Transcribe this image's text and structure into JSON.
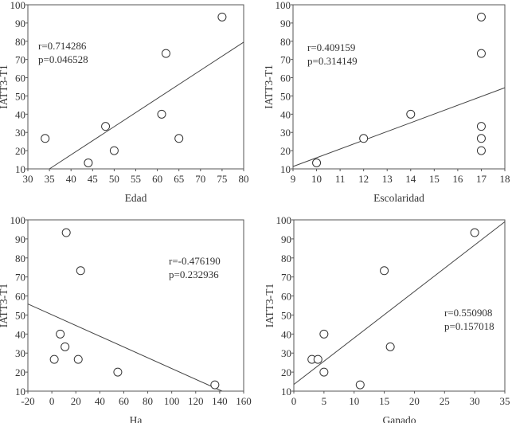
{
  "chart_data": [
    {
      "type": "scatter",
      "xlabel": "Edad",
      "ylabel": "IATT3-T1",
      "xlim": [
        30,
        80
      ],
      "ylim": [
        10,
        100
      ],
      "xticks": [
        30,
        35,
        40,
        45,
        50,
        55,
        60,
        65,
        70,
        75,
        80
      ],
      "yticks": [
        10,
        20,
        30,
        40,
        50,
        60,
        70,
        80,
        90,
        100
      ],
      "points": [
        [
          34,
          26.7
        ],
        [
          44,
          13.3
        ],
        [
          48,
          33.3
        ],
        [
          50,
          20
        ],
        [
          61,
          40
        ],
        [
          62,
          73.3
        ],
        [
          65,
          26.7
        ],
        [
          75,
          93.3
        ]
      ],
      "fit_line": [
        [
          35,
          10
        ],
        [
          80,
          79.5
        ]
      ],
      "annotation": [
        "r=0.714286",
        "p=0.046528"
      ],
      "annotation_placement": "top-left"
    },
    {
      "type": "scatter",
      "xlabel": "Escolaridad",
      "ylabel": "IATT3-T1",
      "xlim": [
        9,
        18
      ],
      "ylim": [
        10,
        100
      ],
      "xticks": [
        9,
        10,
        11,
        12,
        13,
        14,
        15,
        16,
        17,
        18
      ],
      "yticks": [
        10,
        20,
        30,
        40,
        50,
        60,
        70,
        80,
        90,
        100
      ],
      "points": [
        [
          10,
          13.3
        ],
        [
          12,
          26.7
        ],
        [
          14,
          40
        ],
        [
          17,
          93.3
        ],
        [
          17,
          73.3
        ],
        [
          17,
          33.3
        ],
        [
          17,
          26.7
        ],
        [
          17,
          20
        ]
      ],
      "fit_line": [
        [
          9,
          11.3
        ],
        [
          18,
          54.5
        ]
      ],
      "annotation": [
        "r=0.409159",
        "p=0.314149"
      ],
      "annotation_placement": "top-left"
    },
    {
      "type": "scatter",
      "xlabel": "Ha",
      "ylabel": "IATT3-T1",
      "xlim": [
        -20,
        160
      ],
      "ylim": [
        10,
        100
      ],
      "xticks": [
        -20,
        0,
        20,
        40,
        60,
        80,
        100,
        120,
        140,
        160
      ],
      "yticks": [
        10,
        20,
        30,
        40,
        50,
        60,
        70,
        80,
        90,
        100
      ],
      "points": [
        [
          2,
          26.7
        ],
        [
          7,
          40
        ],
        [
          11,
          33.3
        ],
        [
          12,
          93.3
        ],
        [
          22,
          26.7
        ],
        [
          24,
          73.3
        ],
        [
          55,
          20
        ],
        [
          136,
          13.3
        ]
      ],
      "fit_line": [
        [
          -20,
          55.8
        ],
        [
          142,
          10
        ]
      ],
      "annotation": [
        "r=-0.476190",
        "p=0.232936"
      ],
      "annotation_placement": "top-right"
    },
    {
      "type": "scatter",
      "xlabel": "Ganado",
      "ylabel": "IATT3-T1",
      "xlim": [
        0,
        35
      ],
      "ylim": [
        10,
        100
      ],
      "xticks": [
        0,
        5,
        10,
        15,
        20,
        25,
        30,
        35
      ],
      "yticks": [
        10,
        20,
        30,
        40,
        50,
        60,
        70,
        80,
        90,
        100
      ],
      "points": [
        [
          3,
          26.7
        ],
        [
          4,
          26.7
        ],
        [
          5,
          40
        ],
        [
          5,
          20
        ],
        [
          11,
          13.3
        ],
        [
          15,
          73.3
        ],
        [
          16,
          33.3
        ],
        [
          30,
          93.3
        ]
      ],
      "fit_line": [
        [
          0,
          13.5
        ],
        [
          35,
          99
        ]
      ],
      "annotation": [
        "r=0.550908",
        "p=0.157018"
      ],
      "annotation_placement": "right-middle"
    }
  ]
}
